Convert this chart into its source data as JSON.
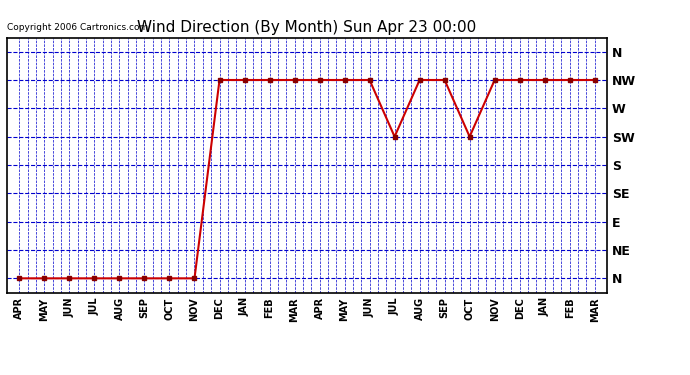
{
  "title": "Wind Direction (By Month) Sun Apr 23 00:00",
  "copyright": "Copyright 2006 Cartronics.com",
  "x_labels": [
    "APR",
    "MAY",
    "JUN",
    "JUL",
    "AUG",
    "SEP",
    "OCT",
    "NOV",
    "DEC",
    "JAN",
    "FEB",
    "MAR",
    "APR",
    "MAY",
    "JUN",
    "JUL",
    "AUG",
    "SEP",
    "OCT",
    "NOV",
    "DEC",
    "JAN",
    "FEB",
    "MAR"
  ],
  "y_labels": [
    "N",
    "NE",
    "E",
    "SE",
    "S",
    "SW",
    "W",
    "NW",
    "N"
  ],
  "y_values": [
    0,
    1,
    2,
    3,
    4,
    5,
    6,
    7,
    8
  ],
  "wind_data": [
    0,
    0,
    0,
    0,
    0,
    0,
    0,
    0,
    7,
    7,
    7,
    7,
    7,
    7,
    7,
    5,
    7,
    7,
    5,
    7,
    7,
    7,
    7,
    7
  ],
  "line_color": "#cc0000",
  "marker_color": "#880000",
  "grid_color": "#0000cc",
  "bg_color": "#ffffff",
  "title_fontsize": 11,
  "copyright_fontsize": 6.5
}
